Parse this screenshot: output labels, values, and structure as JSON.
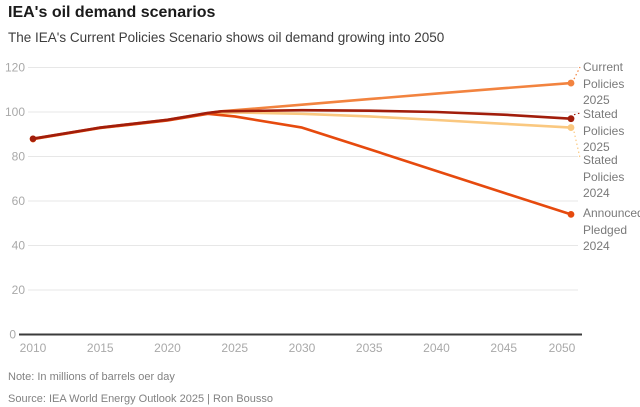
{
  "header": {
    "title": "IEA's oil demand scenarios",
    "subtitle": "The IEA's Current Policies Scenario shows oil demand growing into 2050"
  },
  "footer": {
    "note": "Note: In millions of barrels oer day",
    "source": "Source: IEA World Energy Outlook 2025 | Ron Bousso"
  },
  "chart_data": {
    "type": "line",
    "title": "IEA's oil demand scenarios",
    "subtitle": "The IEA's Current Policies Scenario shows oil demand growing into 2050",
    "xlabel": "",
    "ylabel": "",
    "xlim": [
      2010,
      2050
    ],
    "ylim": [
      0,
      120
    ],
    "x_ticks": [
      2010,
      2015,
      2020,
      2025,
      2030,
      2035,
      2040,
      2045,
      2050
    ],
    "y_ticks": [
      0,
      20,
      40,
      60,
      80,
      100,
      120
    ],
    "grid": "horizontal",
    "legend_position": "right",
    "axis_colors": {
      "grid": "#e7e7e7",
      "zero_axis": "#3b3b3b",
      "tick_label": "#a9a9a9"
    },
    "start_marker": {
      "x": 2010,
      "value": 88
    },
    "series": [
      {
        "id": "current-policies-2025",
        "label": "Current\nPolicies\n2025",
        "color": "#F2833F",
        "x": [
          2010,
          2015,
          2020,
          2023,
          2024,
          2030,
          2035,
          2040,
          2045,
          2050
        ],
        "values": [
          88,
          93,
          96.5,
          99.5,
          100.3,
          103.3,
          105.8,
          108.3,
          110.7,
          113
        ]
      },
      {
        "id": "stated-policies-2025",
        "label": "Stated\nPolicies\n2025",
        "color": "#A11D0B",
        "x": [
          2010,
          2015,
          2020,
          2023,
          2024,
          2030,
          2035,
          2040,
          2045,
          2050
        ],
        "values": [
          88,
          93,
          96.5,
          99.6,
          100.3,
          100.8,
          100.6,
          100,
          98.8,
          97
        ]
      },
      {
        "id": "stated-policies-2024",
        "label": "Stated\nPolicies\n2024",
        "color": "#FAC880",
        "x": [
          2010,
          2015,
          2020,
          2023,
          2025,
          2030,
          2035,
          2040,
          2045,
          2050
        ],
        "values": [
          87.8,
          92.8,
          96.3,
          99.3,
          99.8,
          99.2,
          98,
          96.4,
          94.7,
          93
        ]
      },
      {
        "id": "announced-pledged-2024",
        "label": "Announced\nPledged\n2024",
        "color": "#E64A0E",
        "x": [
          2010,
          2015,
          2020,
          2023,
          2025,
          2030,
          2035,
          2040,
          2045,
          2050
        ],
        "values": [
          87.8,
          92.8,
          96.2,
          99.2,
          98,
          93,
          83.3,
          73.5,
          63.7,
          54
        ]
      }
    ]
  }
}
